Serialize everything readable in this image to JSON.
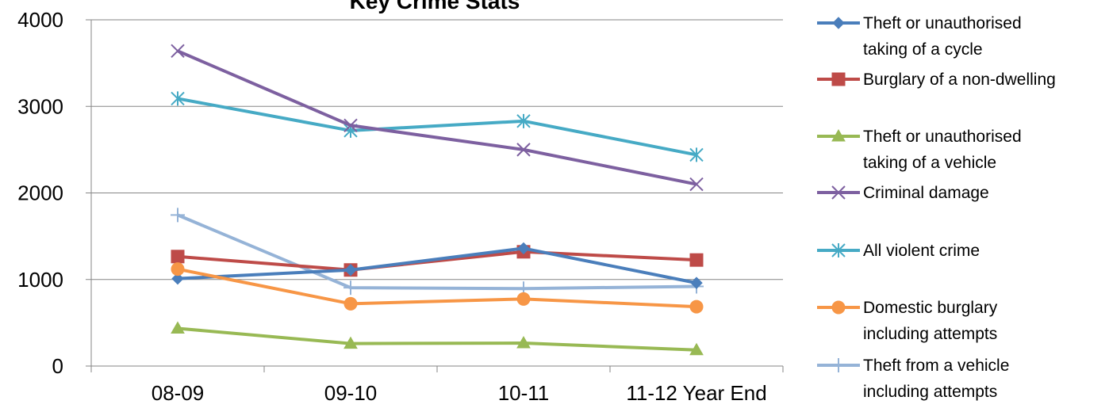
{
  "chart_data": {
    "type": "line",
    "title": "Key Crime Stats",
    "xlabel": "",
    "ylabel": "",
    "categories": [
      "08-09",
      "09-10",
      "10-11",
      "11-12 Year End"
    ],
    "ylim": [
      0,
      4000
    ],
    "yticks": [
      0,
      1000,
      2000,
      3000,
      4000
    ],
    "grid": "horizontal",
    "legend_position": "right",
    "series": [
      {
        "name": "Theft or unauthorised taking of a cycle",
        "legend_lines": [
          "Theft or unauthorised",
          "taking of a cycle"
        ],
        "color": "#4a7ebb",
        "marker": "diamond",
        "values": [
          1010,
          1110,
          1360,
          960
        ]
      },
      {
        "name": "Burglary of a non-dwelling",
        "legend_lines": [
          "Burglary of a non-dwelling"
        ],
        "color": "#be4b48",
        "marker": "square",
        "values": [
          1265,
          1110,
          1320,
          1225
        ]
      },
      {
        "name": "Theft or unauthorised taking of a vehicle",
        "legend_lines": [
          "Theft or unauthorised",
          "taking of a vehicle"
        ],
        "color": "#98b954",
        "marker": "triangle",
        "values": [
          435,
          260,
          265,
          185
        ]
      },
      {
        "name": "Criminal damage",
        "legend_lines": [
          "Criminal damage"
        ],
        "color": "#7d60a0",
        "marker": "x",
        "values": [
          3640,
          2780,
          2500,
          2100
        ]
      },
      {
        "name": "All violent crime",
        "legend_lines": [
          "All violent crime"
        ],
        "color": "#46aac5",
        "marker": "star",
        "values": [
          3090,
          2720,
          2830,
          2440
        ]
      },
      {
        "name": "Domestic burglary including attempts",
        "legend_lines": [
          "Domestic burglary",
          "including attempts"
        ],
        "color": "#f79646",
        "marker": "circle",
        "values": [
          1120,
          720,
          775,
          685
        ]
      },
      {
        "name": "Theft from a vehicle including attempts",
        "legend_lines": [
          "Theft from a vehicle",
          "including attempts"
        ],
        "color": "#95b3d7",
        "marker": "plus",
        "values": [
          1745,
          905,
          895,
          920
        ]
      }
    ]
  }
}
